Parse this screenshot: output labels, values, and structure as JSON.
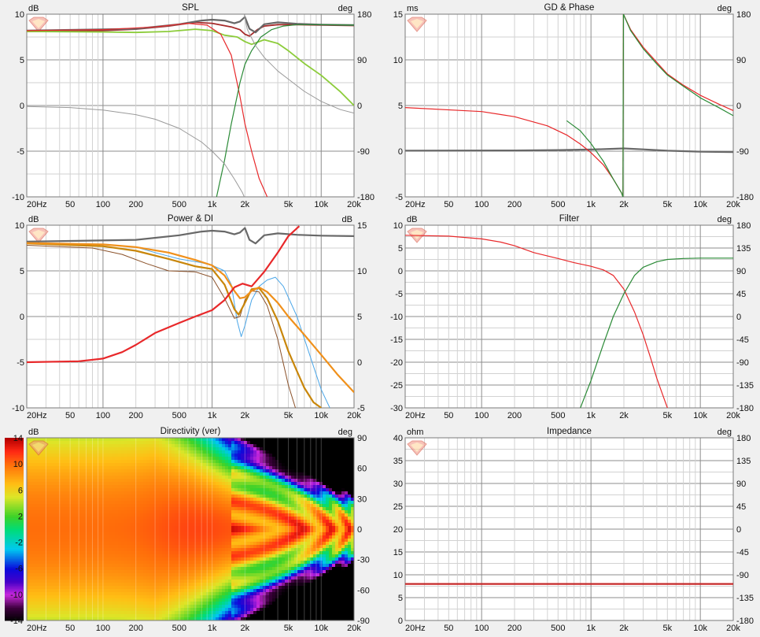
{
  "colors": {
    "bg": "#f0f0f0",
    "plot_bg": "#ffffff",
    "grid_major": "#8c8c8c",
    "grid_minor": "#d2d2d2",
    "red": "#e8282a",
    "dark_red": "#a62a2a",
    "green": "#2a8a36",
    "light_green": "#8ccc3a",
    "gray": "#9a9a9a",
    "dark_gray": "#686868",
    "orange": "#f0901a",
    "dark_orange": "#c8860a",
    "blue": "#4aa6e8",
    "brown": "#8a5028"
  },
  "x_tick_labels": [
    "20Hz",
    "50",
    "100",
    "200",
    "500",
    "1k",
    "2k",
    "5k",
    "10k",
    "20k"
  ],
  "chart_data": [
    {
      "id": "spl",
      "type": "line",
      "title": "SPL",
      "left_unit": "dB",
      "right_unit": "deg",
      "xlim": [
        20,
        20000
      ],
      "log_x": true,
      "ylim": [
        -10,
        10
      ],
      "yticks": [
        10,
        5,
        0,
        -5,
        -10
      ],
      "y2lim": [
        -180,
        180
      ],
      "y2ticks": [
        180,
        90,
        0,
        -90,
        -180
      ],
      "series": [
        {
          "color": "#a62a2a",
          "width": 1.8,
          "axis": "left",
          "x": [
            20,
            100,
            200,
            400,
            700,
            1000,
            1500,
            1800,
            2000,
            2200,
            2600,
            3000,
            4000,
            6000,
            10000,
            20000
          ],
          "y": [
            8.1,
            8.2,
            8.35,
            8.7,
            9.1,
            9.0,
            8.6,
            8.3,
            7.8,
            7.6,
            8.3,
            8.7,
            8.85,
            8.85,
            8.8,
            8.75
          ]
        },
        {
          "color": "#686868",
          "width": 2.2,
          "axis": "left",
          "x": [
            20,
            200,
            500,
            800,
            1000,
            1300,
            1600,
            1800,
            2000,
            2200,
            2500,
            3000,
            4000,
            6000,
            10000,
            20000
          ],
          "y": [
            8.2,
            8.4,
            8.9,
            9.3,
            9.4,
            9.3,
            9.0,
            9.2,
            9.7,
            8.4,
            8.0,
            8.9,
            9.1,
            8.95,
            8.85,
            8.8
          ]
        },
        {
          "color": "#8ccc3a",
          "width": 1.8,
          "axis": "left",
          "x": [
            20,
            100,
            200,
            400,
            700,
            1000,
            1300,
            1700,
            2000,
            2300,
            3000,
            4000,
            5000,
            7000,
            10000,
            15000,
            20000
          ],
          "y": [
            8.1,
            8.05,
            8.0,
            8.1,
            8.35,
            8.2,
            7.7,
            7.5,
            7.0,
            6.7,
            7.2,
            6.8,
            6.0,
            4.6,
            3.3,
            1.5,
            0.0
          ]
        },
        {
          "color": "#e8282a",
          "width": 1.2,
          "axis": "left",
          "x": [
            20,
            100,
            300,
            600,
            900,
            1200,
            1500,
            1800,
            2000,
            2300,
            2700,
            3200
          ],
          "y": [
            8.2,
            8.3,
            8.6,
            9.0,
            8.8,
            7.8,
            5.5,
            1.0,
            -2.0,
            -5.0,
            -8.0,
            -10.0
          ]
        },
        {
          "color": "#2a8a36",
          "width": 1.2,
          "axis": "left",
          "x": [
            1100,
            1300,
            1500,
            1800,
            2000,
            2300,
            2800,
            3500,
            4500,
            6000,
            10000,
            20000
          ],
          "y": [
            -10.0,
            -6.0,
            -2.0,
            2.5,
            4.5,
            6.0,
            7.5,
            8.3,
            8.7,
            8.85,
            8.85,
            8.8
          ]
        },
        {
          "color": "#9a9a9a",
          "width": 1.0,
          "axis": "right",
          "x": [
            20,
            50,
            100,
            200,
            300,
            500,
            800,
            1000,
            1300,
            1600,
            1900,
            1970
          ],
          "y": [
            -2,
            -4,
            -9,
            -18,
            -27,
            -45,
            -72,
            -90,
            -115,
            -145,
            -172,
            -180
          ]
        },
        {
          "color": "#9a9a9a",
          "width": 1.0,
          "axis": "right",
          "x": [
            1970,
            2100,
            2500,
            3000,
            4000,
            5000,
            7000,
            10000,
            15000,
            20000
          ],
          "y": [
            180,
            150,
            118,
            95,
            68,
            52,
            28,
            8,
            -8,
            -15
          ]
        }
      ]
    },
    {
      "id": "gd",
      "type": "line",
      "title": "GD & Phase",
      "left_unit": "ms",
      "right_unit": "deg",
      "xlim": [
        20,
        20000
      ],
      "log_x": true,
      "ylim": [
        -5,
        15
      ],
      "yticks": [
        15,
        10,
        5,
        0,
        -5
      ],
      "y2lim": [
        -180,
        180
      ],
      "y2ticks": [
        180,
        90,
        0,
        -90,
        -180
      ],
      "series": [
        {
          "color": "#686868",
          "width": 2.2,
          "axis": "left",
          "x": [
            20,
            200,
            500,
            1000,
            1500,
            2000,
            3000,
            5000,
            10000,
            20000
          ],
          "y": [
            0.05,
            0.08,
            0.12,
            0.18,
            0.25,
            0.3,
            0.2,
            0.05,
            -0.05,
            -0.1
          ]
        },
        {
          "color": "#e8282a",
          "width": 1.2,
          "axis": "right",
          "x": [
            20,
            100,
            200,
            400,
            600,
            800,
            1000,
            1300,
            1600,
            1900,
            1960
          ],
          "y": [
            -4,
            -12,
            -22,
            -40,
            -58,
            -76,
            -93,
            -117,
            -145,
            -172,
            -180
          ]
        },
        {
          "color": "#e8282a",
          "width": 1.2,
          "axis": "right",
          "x": [
            1960,
            1980
          ],
          "y": [
            -180,
            180
          ]
        },
        {
          "color": "#e8282a",
          "width": 1.2,
          "axis": "right",
          "x": [
            1980,
            2300,
            3000,
            4000,
            5000,
            7000,
            10000,
            15000,
            20000
          ],
          "y": [
            180,
            150,
            115,
            85,
            62,
            40,
            20,
            2,
            -10
          ]
        },
        {
          "color": "#2a8a36",
          "width": 1.2,
          "axis": "right",
          "x": [
            600,
            800,
            1000,
            1300,
            1600,
            1900,
            1960
          ],
          "y": [
            -30,
            -50,
            -75,
            -110,
            -145,
            -172,
            -180
          ]
        },
        {
          "color": "#2a8a36",
          "width": 1.2,
          "axis": "right",
          "x": [
            1960,
            1980
          ],
          "y": [
            -180,
            180
          ]
        },
        {
          "color": "#2a8a36",
          "width": 1.2,
          "axis": "right",
          "x": [
            1980,
            2300,
            3000,
            4000,
            5000,
            7000,
            10000,
            15000,
            20000
          ],
          "y": [
            180,
            148,
            112,
            82,
            60,
            38,
            15,
            -5,
            -20
          ]
        }
      ]
    },
    {
      "id": "power",
      "type": "line",
      "title": "Power & DI",
      "left_unit": "dB",
      "right_unit": "dB",
      "xlim": [
        20,
        20000
      ],
      "log_x": true,
      "ylim": [
        -10,
        10
      ],
      "yticks": [
        10,
        5,
        0,
        -5,
        -10
      ],
      "y2lim": [
        -5,
        15
      ],
      "y2ticks": [
        15,
        10,
        5,
        0,
        -5
      ],
      "series": [
        {
          "color": "#686868",
          "width": 2.2,
          "axis": "left",
          "x": [
            20,
            200,
            500,
            800,
            1000,
            1300,
            1600,
            1800,
            2000,
            2200,
            2500,
            3000,
            4000,
            6000,
            10000,
            20000
          ],
          "y": [
            8.2,
            8.4,
            8.9,
            9.3,
            9.4,
            9.3,
            9.0,
            9.2,
            9.7,
            8.4,
            8.0,
            8.9,
            9.1,
            8.95,
            8.85,
            8.8
          ]
        },
        {
          "color": "#4aa6e8",
          "width": 1.0,
          "axis": "left",
          "x": [
            20,
            100,
            200,
            300,
            500,
            800,
            1000,
            1300,
            1500,
            1700,
            1850,
            2000,
            2300,
            2700,
            3200,
            3800,
            4500,
            6000,
            8000,
            10000,
            12000
          ],
          "y": [
            8.0,
            7.9,
            7.6,
            7.0,
            6.3,
            5.9,
            5.6,
            5.0,
            3.5,
            -0.5,
            -2.2,
            -1.0,
            1.8,
            3.3,
            4.0,
            4.3,
            3.3,
            0.0,
            -4.5,
            -8.0,
            -10.0
          ]
        },
        {
          "color": "#8a5028",
          "width": 1.0,
          "axis": "left",
          "x": [
            20,
            80,
            150,
            250,
            400,
            700,
            1000,
            1300,
            1600,
            1800,
            2000,
            2300,
            2700,
            3200,
            4000,
            5000,
            5800
          ],
          "y": [
            7.8,
            7.5,
            6.8,
            5.8,
            5.0,
            4.9,
            4.3,
            2.0,
            -0.2,
            0.0,
            1.8,
            2.8,
            2.7,
            1.2,
            -2.5,
            -7.5,
            -10.0
          ]
        },
        {
          "color": "#c8860a",
          "width": 2.2,
          "axis": "left",
          "x": [
            20,
            100,
            200,
            400,
            700,
            1000,
            1300,
            1600,
            1750,
            2000,
            2300,
            2700,
            3200,
            4000,
            5000,
            6000,
            7000,
            8500,
            10000
          ],
          "y": [
            8.0,
            7.7,
            7.2,
            6.3,
            5.5,
            5.2,
            3.5,
            0.8,
            0.2,
            1.5,
            3.0,
            3.1,
            2.0,
            -0.5,
            -3.8,
            -6.0,
            -7.8,
            -9.4,
            -10.0
          ]
        },
        {
          "color": "#f0901a",
          "width": 2.2,
          "axis": "left",
          "x": [
            20,
            100,
            200,
            400,
            700,
            1000,
            1300,
            1600,
            1800,
            2000,
            2300,
            2700,
            3200,
            4000,
            5000,
            7000,
            10000,
            14000,
            20000
          ],
          "y": [
            8.05,
            7.9,
            7.6,
            7.0,
            6.2,
            5.6,
            4.5,
            2.8,
            2.0,
            2.1,
            2.8,
            3.2,
            2.7,
            1.5,
            0.0,
            -2.0,
            -4.2,
            -6.3,
            -8.3
          ]
        },
        {
          "color": "#e8282a",
          "width": 2.2,
          "axis": "right",
          "x": [
            20,
            60,
            100,
            150,
            200,
            300,
            500,
            700,
            1000,
            1300,
            1600,
            1900,
            2300,
            3000,
            4000,
            5000,
            6300
          ],
          "y": [
            0.0,
            0.1,
            0.4,
            1.1,
            1.9,
            3.2,
            4.3,
            5.0,
            5.7,
            6.8,
            8.2,
            8.6,
            8.3,
            9.9,
            12.0,
            13.8,
            14.9
          ]
        }
      ]
    },
    {
      "id": "filter",
      "type": "line",
      "title": "Filter",
      "left_unit": "dB",
      "right_unit": "deg",
      "xlim": [
        20,
        20000
      ],
      "log_x": true,
      "ylim": [
        -30,
        10
      ],
      "yticks": [
        10,
        5,
        0,
        -5,
        -10,
        -15,
        -20,
        -25,
        -30
      ],
      "y2lim": [
        -180,
        180
      ],
      "y2ticks": [
        180,
        135,
        90,
        45,
        0,
        -45,
        -90,
        -135,
        -180
      ],
      "series": [
        {
          "color": "#e8282a",
          "width": 1.2,
          "axis": "left",
          "x": [
            20,
            50,
            100,
            150,
            200,
            300,
            500,
            700,
            1000,
            1300,
            1600,
            2000,
            2500,
            3000,
            3500,
            4000,
            4500,
            5000
          ],
          "y": [
            7.8,
            7.6,
            7.0,
            6.3,
            5.5,
            4.0,
            2.7,
            1.8,
            1.0,
            0.2,
            -1.0,
            -4.0,
            -9.0,
            -14.0,
            -19.0,
            -23.5,
            -27.0,
            -30.0
          ]
        },
        {
          "color": "#2a8a36",
          "width": 1.2,
          "axis": "left",
          "x": [
            800,
            1000,
            1300,
            1600,
            2000,
            2500,
            3000,
            4000,
            5000,
            7000,
            10000,
            20000
          ],
          "y": [
            -30.0,
            -24.0,
            -16.0,
            -10.0,
            -5.0,
            -1.0,
            0.8,
            2.0,
            2.5,
            2.7,
            2.8,
            2.8
          ]
        }
      ]
    },
    {
      "id": "directivity",
      "type": "heatmap",
      "title": "Directivity (ver)",
      "left_unit": "dB",
      "right_unit": "deg",
      "xlim": [
        20,
        20000
      ],
      "log_x": true,
      "y2lim": [
        -90,
        90
      ],
      "y2ticks": [
        90,
        60,
        30,
        0,
        -30,
        -60,
        -90
      ],
      "colorbar_ticks": [
        14,
        10,
        6,
        2,
        -2,
        -6,
        -10,
        -14
      ],
      "colorbar_range": [
        -14,
        14
      ]
    },
    {
      "id": "impedance",
      "type": "line",
      "title": "Impedance",
      "left_unit": "ohm",
      "right_unit": "deg",
      "xlim": [
        20,
        20000
      ],
      "log_x": true,
      "ylim": [
        0,
        40
      ],
      "yticks": [
        40,
        35,
        30,
        25,
        20,
        15,
        10,
        5,
        0
      ],
      "y2lim": [
        -180,
        180
      ],
      "y2ticks": [
        180,
        135,
        90,
        45,
        0,
        -45,
        -90,
        -135,
        -180
      ],
      "series": [
        {
          "color": "#e8282a",
          "width": 2.2,
          "axis": "left",
          "x": [
            20,
            20000
          ],
          "y": [
            8.0,
            8.0
          ]
        },
        {
          "color": "#a62a2a",
          "width": 1.0,
          "axis": "left",
          "x": [
            20,
            20000
          ],
          "y": [
            8.0,
            8.0
          ]
        }
      ]
    }
  ]
}
